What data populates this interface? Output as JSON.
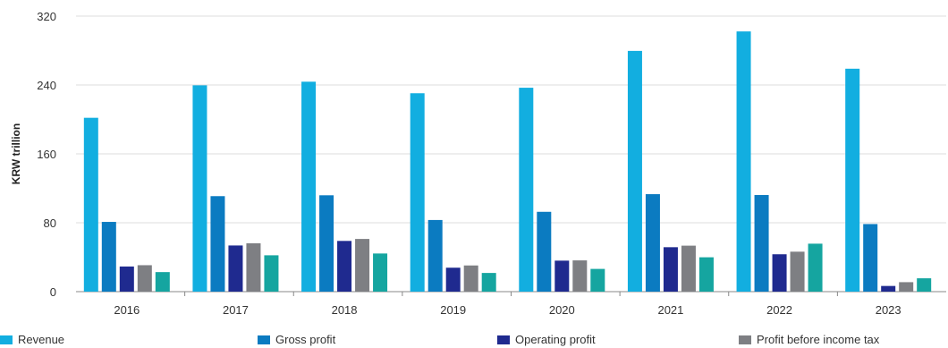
{
  "chart_data": {
    "type": "bar",
    "title": "",
    "xlabel": "",
    "ylabel": "KRW trillion",
    "ylim": [
      0,
      320
    ],
    "yticks": [
      "0",
      "80",
      "160",
      "240",
      "320"
    ],
    "grid": true,
    "legend_position": "bottom",
    "categories": [
      "2016",
      "2017",
      "2018",
      "2019",
      "2020",
      "2021",
      "2022",
      "2023"
    ],
    "series": [
      {
        "name": "Revenue",
        "color": "#12aee0",
        "values": [
          201.9,
          239.6,
          243.8,
          230.4,
          236.8,
          279.6,
          302.2,
          258.9
        ]
      },
      {
        "name": "Gross profit",
        "color": "#0b7bc1",
        "values": [
          81.0,
          110.9,
          111.9,
          83.2,
          92.7,
          113.2,
          112.2,
          78.5
        ]
      },
      {
        "name": "Operating profit",
        "color": "#1f2a8f",
        "values": [
          29.2,
          53.6,
          58.9,
          27.8,
          36.0,
          51.6,
          43.4,
          6.6
        ]
      },
      {
        "name": "Profit before income tax",
        "color": "#7e7f83",
        "values": [
          30.7,
          56.2,
          61.2,
          30.4,
          36.3,
          53.4,
          46.4,
          11.0
        ]
      },
      {
        "name": "",
        "color": "#15a5a0",
        "values": [
          22.7,
          42.2,
          44.3,
          21.7,
          26.4,
          39.9,
          55.7,
          15.5
        ]
      }
    ]
  }
}
